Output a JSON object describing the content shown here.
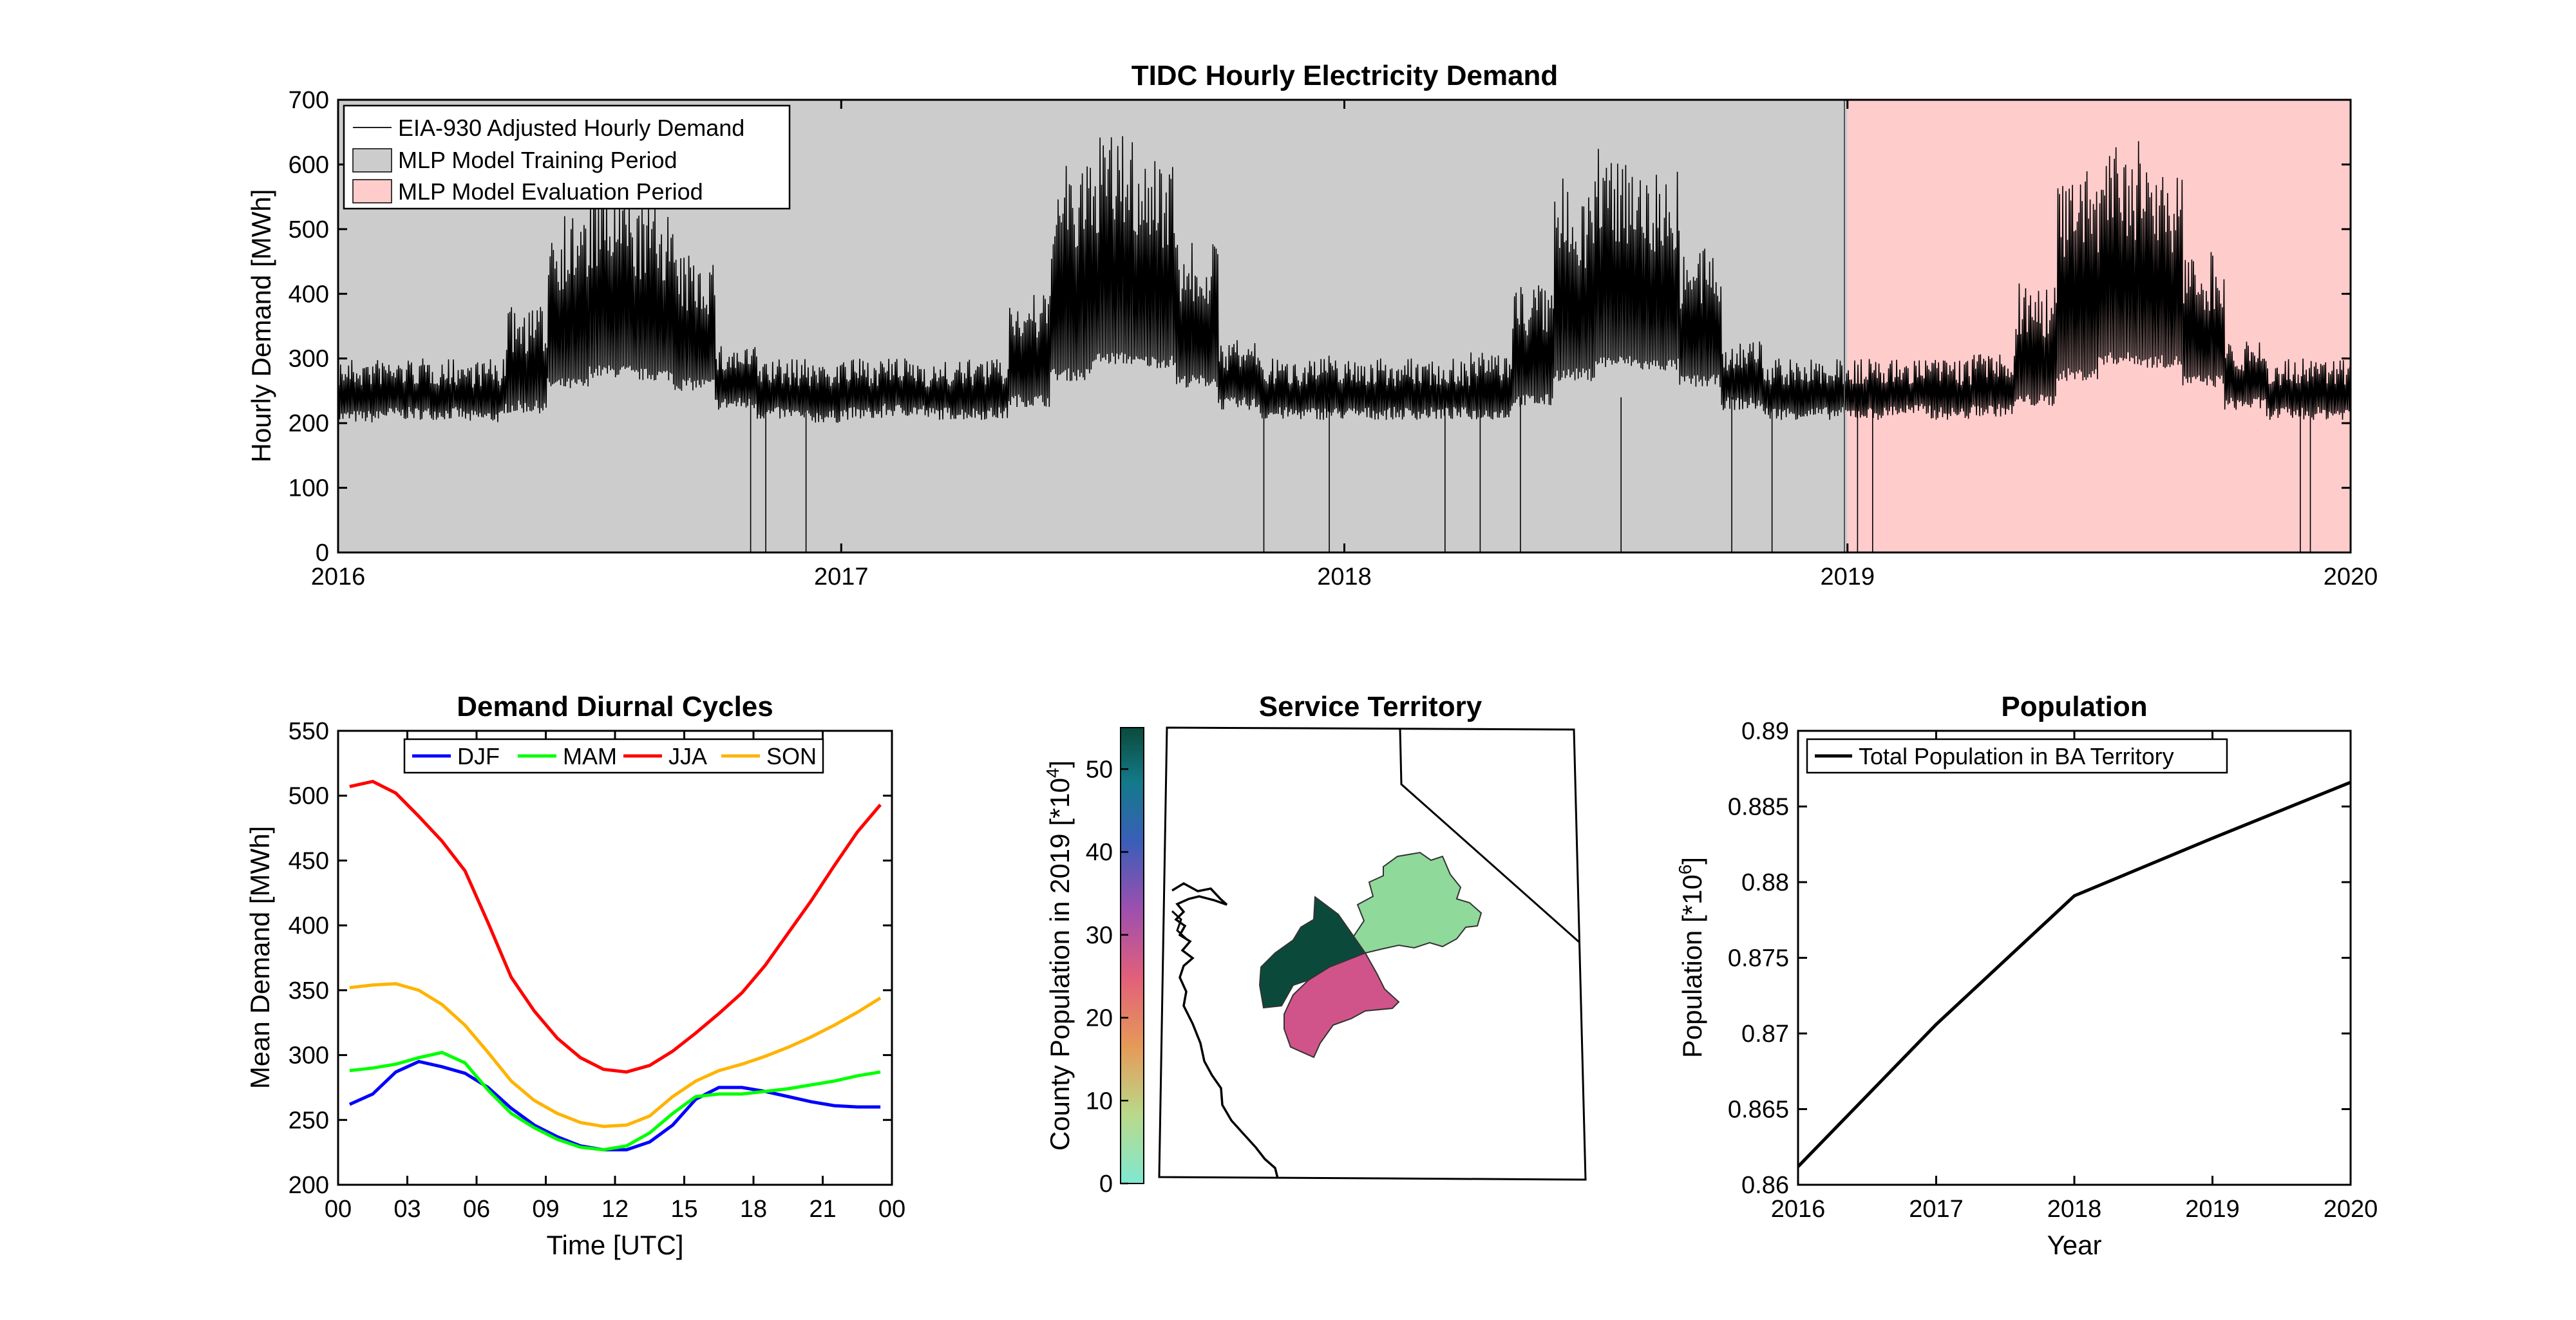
{
  "figure": {
    "demand": {
      "title": "TIDC Hourly Electricity Demand",
      "ylabel": "Hourly Demand [MWh]",
      "ylim": [
        0,
        700
      ],
      "yticks": [
        0,
        100,
        200,
        300,
        400,
        500,
        600,
        700
      ],
      "xticks": [
        "2016",
        "2017",
        "2018",
        "2019",
        "2020"
      ],
      "legend": [
        {
          "label": "EIA-930 Adjusted Hourly Demand",
          "color": "#000000",
          "kind": "line"
        },
        {
          "label": "MLP Model Training Period",
          "color": "#cccccc",
          "kind": "patch"
        },
        {
          "label": "MLP Model Evaluation Period",
          "color": "#ffcccc",
          "kind": "patch"
        }
      ],
      "training_period": [
        "2016",
        "2019"
      ],
      "evaluation_period": [
        "2019",
        "2020"
      ]
    },
    "diurnal": {
      "title": "Demand Diurnal Cycles",
      "xlabel": "Time [UTC]",
      "ylabel": "Mean Demand [MWh]",
      "ylim": [
        200,
        550
      ],
      "yticks": [
        200,
        250,
        300,
        350,
        400,
        450,
        500,
        550
      ],
      "xticks": [
        "00",
        "03",
        "06",
        "09",
        "12",
        "15",
        "18",
        "21",
        "00"
      ]
    },
    "territory": {
      "title": "Service Territory",
      "colorbar_label": "County Population in 2019 [*10",
      "colorbar_exp": "4",
      "colorbar_ticks": [
        0,
        10,
        20,
        30,
        40,
        50
      ]
    },
    "population": {
      "title": "Population",
      "xlabel": "Year",
      "ylabel": "Population [*10",
      "ylabel_exp": "6",
      "ylim": [
        0.86,
        0.89
      ],
      "yticks": [
        "0.86",
        "0.865",
        "0.87",
        "0.875",
        "0.88",
        "0.885",
        "0.89"
      ],
      "xticks": [
        "2016",
        "2017",
        "2018",
        "2019",
        "2020"
      ],
      "legend": "Total Population in BA Territory"
    }
  },
  "chart_data": [
    {
      "type": "line",
      "title": "TIDC Hourly Electricity Demand",
      "ylabel": "Hourly Demand [MWh]",
      "ylim": [
        0,
        700
      ],
      "xlim": [
        "2016-01-01",
        "2020-01-01"
      ],
      "series": [
        {
          "name": "EIA-930 Adjusted Hourly Demand",
          "note_values": "approximate daily envelope (min, max) per half-month",
          "x": [
            "2016-01",
            "2016-02",
            "2016-03",
            "2016-04",
            "2016-05",
            "2016-06",
            "2016-07",
            "2016-08",
            "2016-09",
            "2016-10",
            "2016-11",
            "2016-12",
            "2017-01",
            "2017-02",
            "2017-03",
            "2017-04",
            "2017-05",
            "2017-06",
            "2017-07",
            "2017-08",
            "2017-09",
            "2017-10",
            "2017-11",
            "2017-12",
            "2018-01",
            "2018-02",
            "2018-03",
            "2018-04",
            "2018-05",
            "2018-06",
            "2018-07",
            "2018-08",
            "2018-09",
            "2018-10",
            "2018-11",
            "2018-12",
            "2019-01",
            "2019-02",
            "2019-03",
            "2019-04",
            "2019-05",
            "2019-06",
            "2019-07",
            "2019-08",
            "2019-09",
            "2019-10",
            "2019-11",
            "2019-12"
          ],
          "min": [
            200,
            205,
            205,
            200,
            215,
            250,
            270,
            265,
            250,
            220,
            205,
            200,
            205,
            210,
            205,
            205,
            225,
            265,
            290,
            285,
            255,
            220,
            205,
            205,
            205,
            205,
            205,
            205,
            225,
            265,
            285,
            280,
            255,
            220,
            205,
            205,
            205,
            210,
            205,
            210,
            225,
            265,
            290,
            285,
            255,
            220,
            205,
            205
          ],
          "max": [
            300,
            300,
            300,
            300,
            380,
            530,
            560,
            540,
            460,
            320,
            300,
            300,
            300,
            300,
            295,
            300,
            400,
            600,
            650,
            620,
            480,
            330,
            300,
            305,
            300,
            300,
            300,
            310,
            420,
            580,
            630,
            600,
            470,
            330,
            300,
            300,
            300,
            300,
            300,
            310,
            420,
            590,
            640,
            610,
            470,
            330,
            300,
            300
          ]
        }
      ]
    },
    {
      "type": "line",
      "title": "Demand Diurnal Cycles",
      "xlabel": "Time [UTC]",
      "ylabel": "Mean Demand [MWh]",
      "ylim": [
        200,
        550
      ],
      "x": [
        0.5,
        1.5,
        2.5,
        3.5,
        4.5,
        5.5,
        6.5,
        7.5,
        8.5,
        9.5,
        10.5,
        11.5,
        12.5,
        13.5,
        14.5,
        15.5,
        16.5,
        17.5,
        18.5,
        19.5,
        20.5,
        21.5,
        22.5,
        23.5
      ],
      "legend": "top",
      "series": [
        {
          "name": "DJF",
          "color": "#0000ff",
          "values": [
            262,
            270,
            287,
            295,
            291,
            286,
            275,
            259,
            246,
            237,
            230,
            227,
            227,
            233,
            246,
            266,
            275,
            275,
            272,
            268,
            264,
            261,
            260,
            260
          ]
        },
        {
          "name": "MAM",
          "color": "#00ff00",
          "values": [
            288,
            290,
            293,
            298,
            302,
            294,
            273,
            255,
            244,
            235,
            229,
            227,
            230,
            240,
            255,
            268,
            270,
            270,
            272,
            274,
            277,
            280,
            284,
            287
          ]
        },
        {
          "name": "JJA",
          "color": "#ff0000",
          "values": [
            507,
            511,
            502,
            484,
            465,
            442,
            402,
            360,
            334,
            313,
            298,
            289,
            287,
            292,
            303,
            317,
            332,
            348,
            369,
            394,
            419,
            446,
            472,
            493
          ]
        },
        {
          "name": "SON",
          "color": "#ffb300",
          "values": [
            352,
            354,
            355,
            350,
            339,
            323,
            302,
            280,
            265,
            255,
            248,
            245,
            246,
            253,
            268,
            280,
            288,
            293,
            299,
            306,
            314,
            323,
            333,
            344
          ]
        }
      ]
    },
    {
      "type": "heatmap",
      "title": "Service Territory",
      "colorbar_label": "County Population in 2019 [*10^4]",
      "colorbar_range": [
        0,
        55
      ],
      "regions": [
        {
          "name": "county-dark-green",
          "value": 55,
          "color": "#0b4a3b"
        },
        {
          "name": "county-magenta",
          "value": 27,
          "color": "#d0548a"
        },
        {
          "name": "county-light-green",
          "value": 6,
          "color": "#8fd99b"
        }
      ]
    },
    {
      "type": "line",
      "title": "Population",
      "xlabel": "Year",
      "ylabel": "Population [*10^6]",
      "ylim": [
        0.86,
        0.89
      ],
      "legend": "top-left",
      "series": [
        {
          "name": "Total Population in BA Territory",
          "color": "#000000",
          "x": [
            2016,
            2017,
            2018,
            2019,
            2020
          ],
          "values": [
            0.8612,
            0.8706,
            0.8791,
            0.8829,
            0.8866
          ]
        }
      ]
    }
  ]
}
